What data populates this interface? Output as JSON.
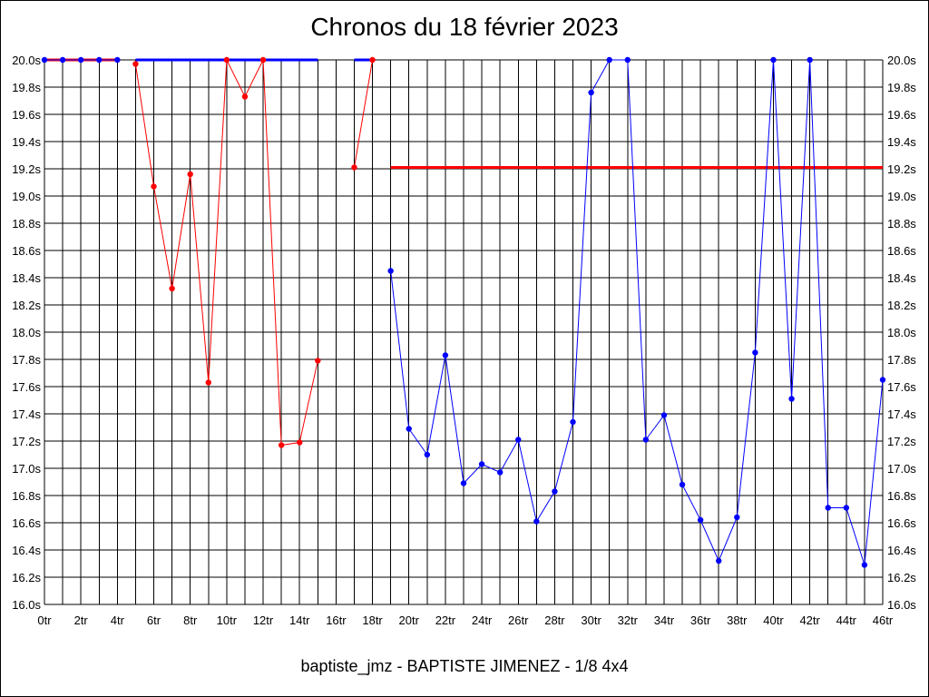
{
  "chart_data": {
    "type": "line",
    "title": "Chronos du 18 février 2023",
    "footer": "baptiste_jmz - BAPTISTE JIMENEZ - 1/8 4x4",
    "xlim": [
      0,
      46
    ],
    "ylim": [
      16.0,
      20.0
    ],
    "grid": true,
    "x_ticks": [
      "0tr",
      "2tr",
      "4tr",
      "6tr",
      "8tr",
      "10tr",
      "12tr",
      "14tr",
      "16tr",
      "18tr",
      "20tr",
      "22tr",
      "24tr",
      "26tr",
      "28tr",
      "30tr",
      "32tr",
      "34tr",
      "36tr",
      "38tr",
      "40tr",
      "42tr",
      "44tr",
      "46tr"
    ],
    "y_ticks": [
      "16.0s",
      "16.2s",
      "16.4s",
      "16.6s",
      "16.8s",
      "17.0s",
      "17.2s",
      "17.4s",
      "17.6s",
      "17.8s",
      "18.0s",
      "18.2s",
      "18.4s",
      "18.6s",
      "18.8s",
      "19.0s",
      "19.2s",
      "19.4s",
      "19.6s",
      "19.8s",
      "20.0s"
    ],
    "segments": [
      {
        "color": "#0000ff",
        "points": [
          [
            0,
            20.0
          ],
          [
            1,
            20.0
          ],
          [
            2,
            20.0
          ],
          [
            3,
            20.0
          ],
          [
            4,
            20.0
          ]
        ]
      },
      {
        "color": "#ff0000",
        "points": [
          [
            5,
            19.97
          ],
          [
            6,
            19.07
          ],
          [
            7,
            18.32
          ],
          [
            8,
            19.16
          ],
          [
            9,
            17.63
          ],
          [
            10,
            20.0
          ],
          [
            11,
            19.73
          ],
          [
            12,
            20.0
          ],
          [
            13,
            17.17
          ],
          [
            14,
            17.19
          ],
          [
            15,
            17.79
          ]
        ]
      },
      {
        "color": "#ff0000",
        "points": [
          [
            17,
            19.21
          ],
          [
            18,
            20.0
          ]
        ]
      },
      {
        "color": "#0000ff",
        "points": [
          [
            19,
            18.45
          ],
          [
            20,
            17.29
          ],
          [
            21,
            17.1
          ],
          [
            22,
            17.83
          ],
          [
            23,
            16.89
          ],
          [
            24,
            17.03
          ],
          [
            25,
            16.97
          ],
          [
            26,
            17.21
          ],
          [
            27,
            16.61
          ],
          [
            28,
            16.83
          ],
          [
            29,
            17.34
          ],
          [
            30,
            19.76
          ],
          [
            31,
            20.0
          ],
          [
            32,
            20.0
          ],
          [
            33,
            17.21
          ],
          [
            34,
            17.39
          ],
          [
            35,
            16.88
          ],
          [
            36,
            16.62
          ],
          [
            37,
            16.32
          ],
          [
            38,
            16.64
          ],
          [
            39,
            17.85
          ],
          [
            40,
            20.0
          ],
          [
            41,
            17.51
          ],
          [
            42,
            20.0
          ],
          [
            43,
            16.71
          ],
          [
            44,
            16.71
          ],
          [
            45,
            16.29
          ],
          [
            46,
            17.65
          ]
        ]
      }
    ],
    "bars": [
      {
        "color": "#ff0000",
        "x1": 0,
        "x2": 4,
        "y": 20.0
      },
      {
        "color": "#0000ff",
        "x1": 5,
        "x2": 15,
        "y": 20.0
      },
      {
        "color": "#0000ff",
        "x1": 17,
        "x2": 18,
        "y": 20.0
      },
      {
        "color": "#ff0000",
        "x1": 19,
        "x2": 46,
        "y": 19.21
      }
    ]
  }
}
